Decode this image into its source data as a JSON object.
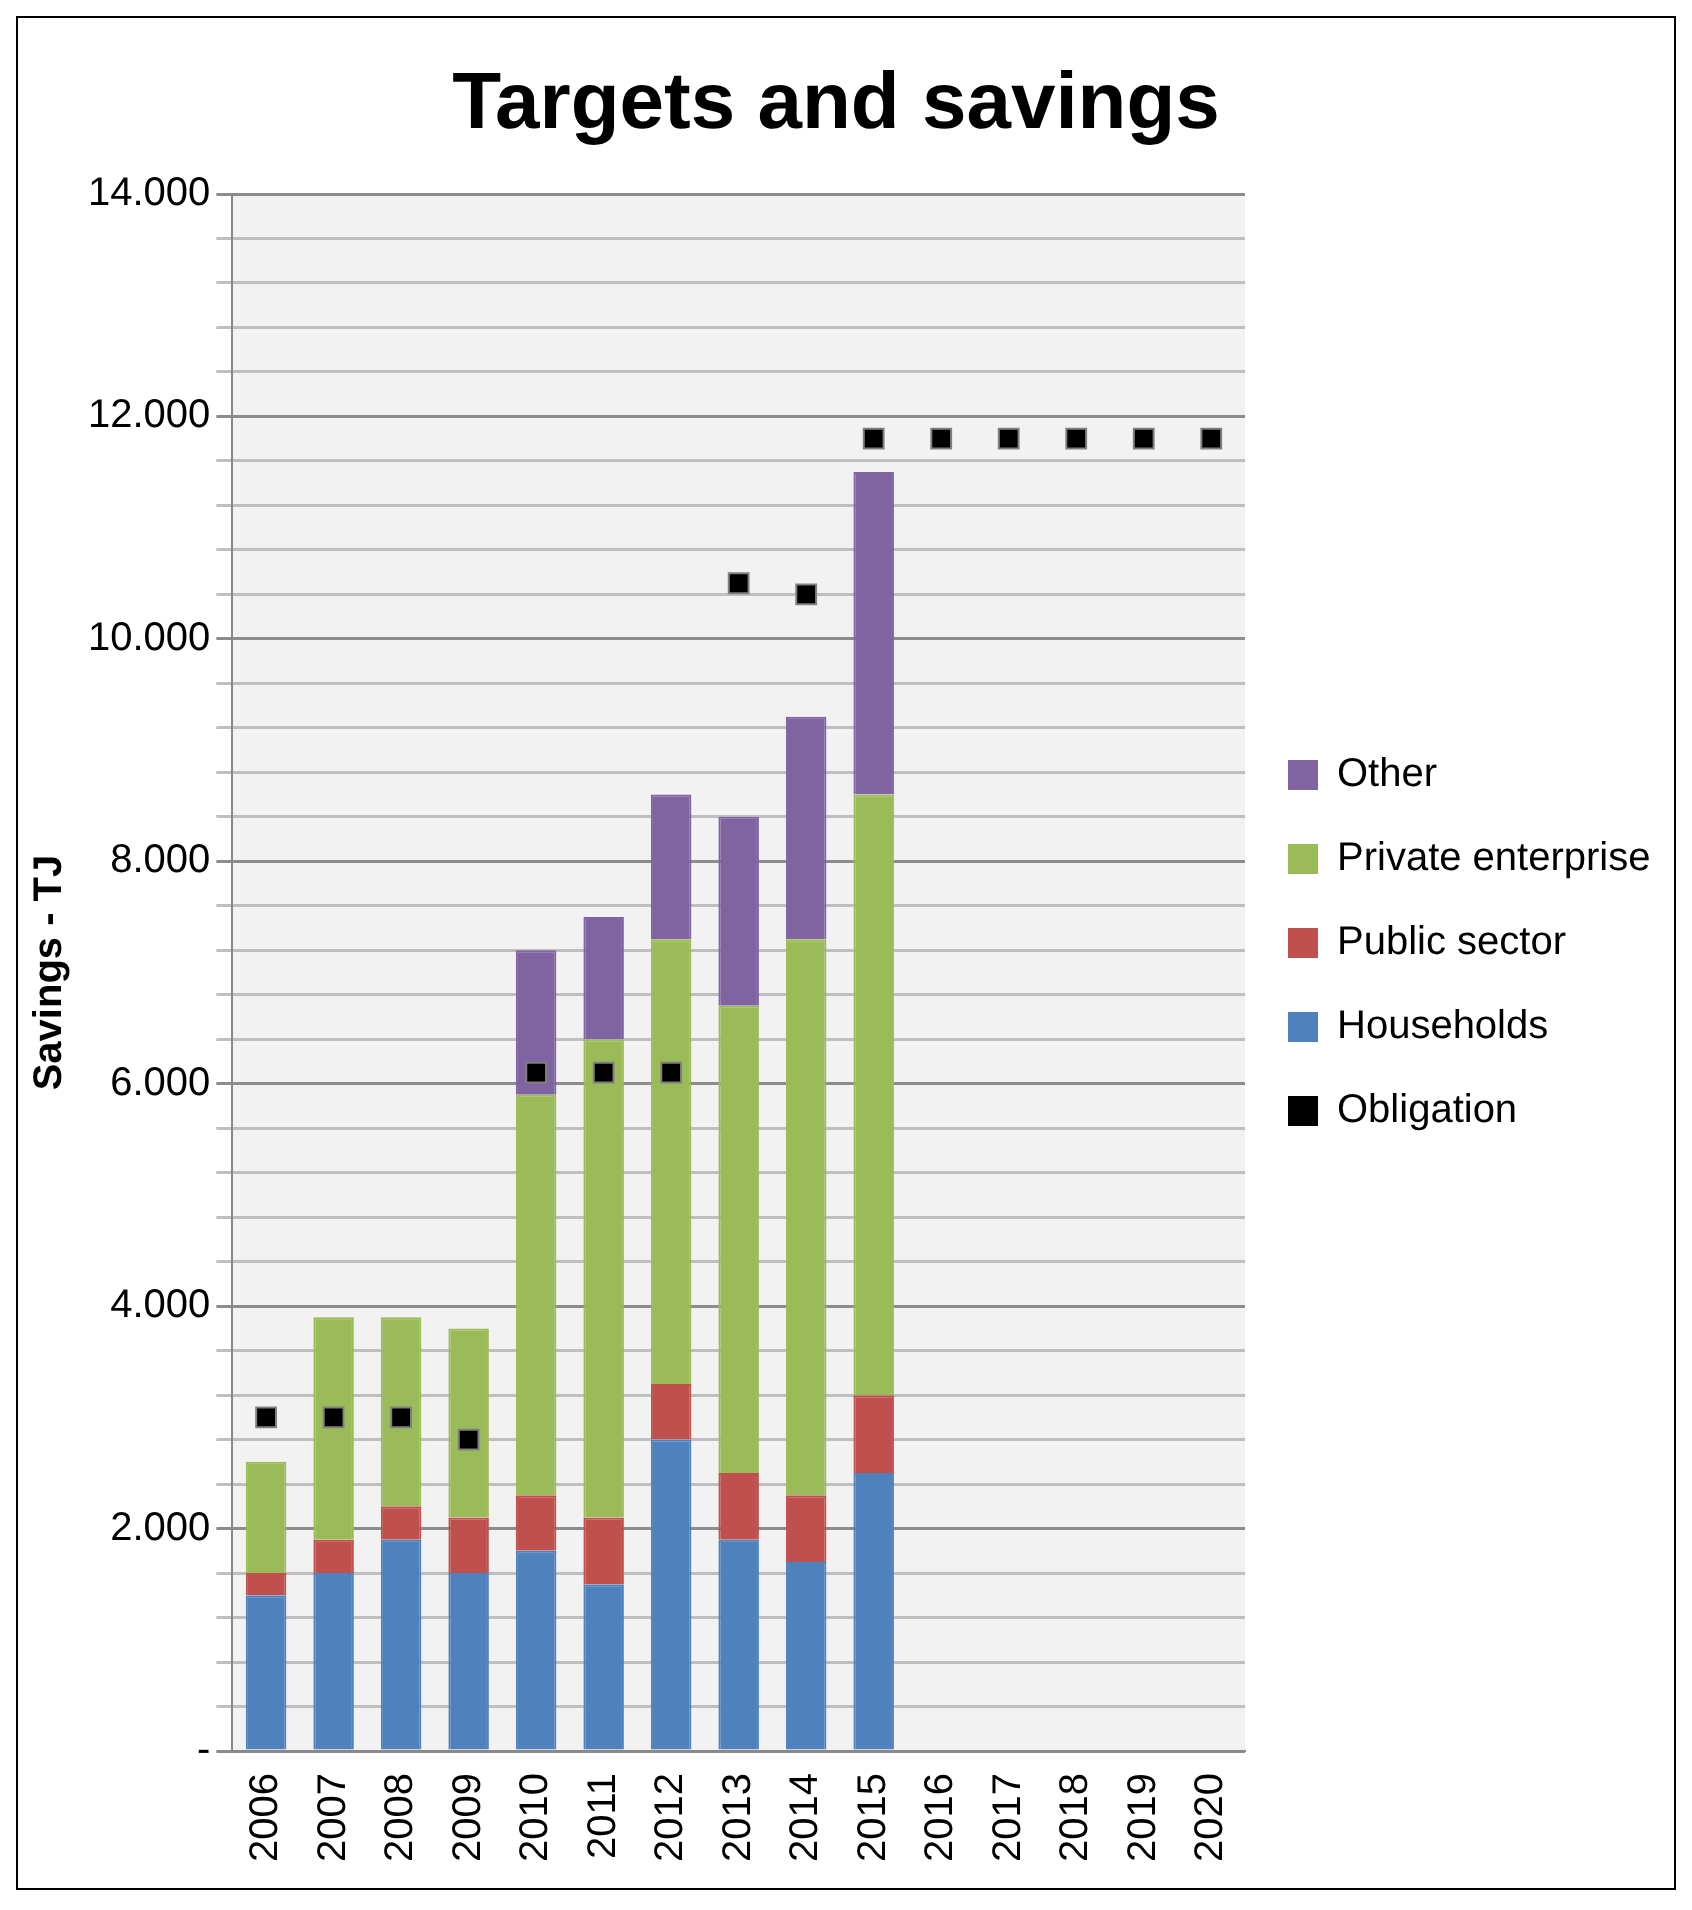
{
  "chart_data": {
    "type": "bar",
    "title": "Targets and savings",
    "ylabel": "Savings - TJ",
    "stacked": true,
    "legend": "right",
    "grid": "y",
    "categories": [
      "2006",
      "2007",
      "2008",
      "2009",
      "2010",
      "2011",
      "2012",
      "2013",
      "2014",
      "2015",
      "2016",
      "2017",
      "2018",
      "2019",
      "2020"
    ],
    "ylim": [
      0,
      14000
    ],
    "yticks": [
      {
        "value": 0,
        "label": "-"
      },
      {
        "value": 400,
        "label": null
      },
      {
        "value": 800,
        "label": null
      },
      {
        "value": 1200,
        "label": null
      },
      {
        "value": 1600,
        "label": null
      },
      {
        "value": 2000,
        "label": "2.000"
      },
      {
        "value": 2400,
        "label": null
      },
      {
        "value": 2800,
        "label": null
      },
      {
        "value": 3200,
        "label": null
      },
      {
        "value": 3600,
        "label": null
      },
      {
        "value": 4000,
        "label": "4.000"
      },
      {
        "value": 4400,
        "label": null
      },
      {
        "value": 4800,
        "label": null
      },
      {
        "value": 5200,
        "label": null
      },
      {
        "value": 5600,
        "label": null
      },
      {
        "value": 6000,
        "label": "6.000"
      },
      {
        "value": 6400,
        "label": null
      },
      {
        "value": 6800,
        "label": null
      },
      {
        "value": 7200,
        "label": null
      },
      {
        "value": 7600,
        "label": null
      },
      {
        "value": 8000,
        "label": "8.000"
      },
      {
        "value": 8400,
        "label": null
      },
      {
        "value": 8800,
        "label": null
      },
      {
        "value": 9200,
        "label": null
      },
      {
        "value": 9600,
        "label": null
      },
      {
        "value": 10000,
        "label": "10.000"
      },
      {
        "value": 10400,
        "label": null
      },
      {
        "value": 10800,
        "label": null
      },
      {
        "value": 11200,
        "label": null
      },
      {
        "value": 11600,
        "label": null
      },
      {
        "value": 12000,
        "label": "12.000"
      },
      {
        "value": 12400,
        "label": null
      },
      {
        "value": 12800,
        "label": null
      },
      {
        "value": 13200,
        "label": null
      },
      {
        "value": 13600,
        "label": null
      },
      {
        "value": 14000,
        "label": "14.000"
      }
    ],
    "series": [
      {
        "name": "Households",
        "color": "#4f81bd",
        "values": [
          1400,
          1600,
          1900,
          1600,
          1800,
          1500,
          2800,
          1900,
          1700,
          2500,
          null,
          null,
          null,
          null,
          null
        ]
      },
      {
        "name": "Public sector",
        "color": "#c0504d",
        "values": [
          200,
          300,
          300,
          500,
          500,
          600,
          500,
          600,
          600,
          700,
          null,
          null,
          null,
          null,
          null
        ]
      },
      {
        "name": "Private enterprise",
        "color": "#9bbb59",
        "values": [
          1000,
          2000,
          1700,
          1700,
          3600,
          4300,
          4000,
          4200,
          5000,
          5400,
          null,
          null,
          null,
          null,
          null
        ]
      },
      {
        "name": "Other",
        "color": "#8064a2",
        "values": [
          null,
          null,
          null,
          null,
          1300,
          1100,
          1300,
          1700,
          2000,
          2900,
          null,
          null,
          null,
          null,
          null
        ]
      },
      {
        "name": "Obligation",
        "type": "scatter",
        "marker": "square",
        "color": "#000000",
        "values": [
          3000,
          3000,
          3000,
          2800,
          6100,
          6100,
          6100,
          10500,
          10400,
          11800,
          11800,
          11800,
          11800,
          11800,
          11800
        ]
      }
    ]
  }
}
